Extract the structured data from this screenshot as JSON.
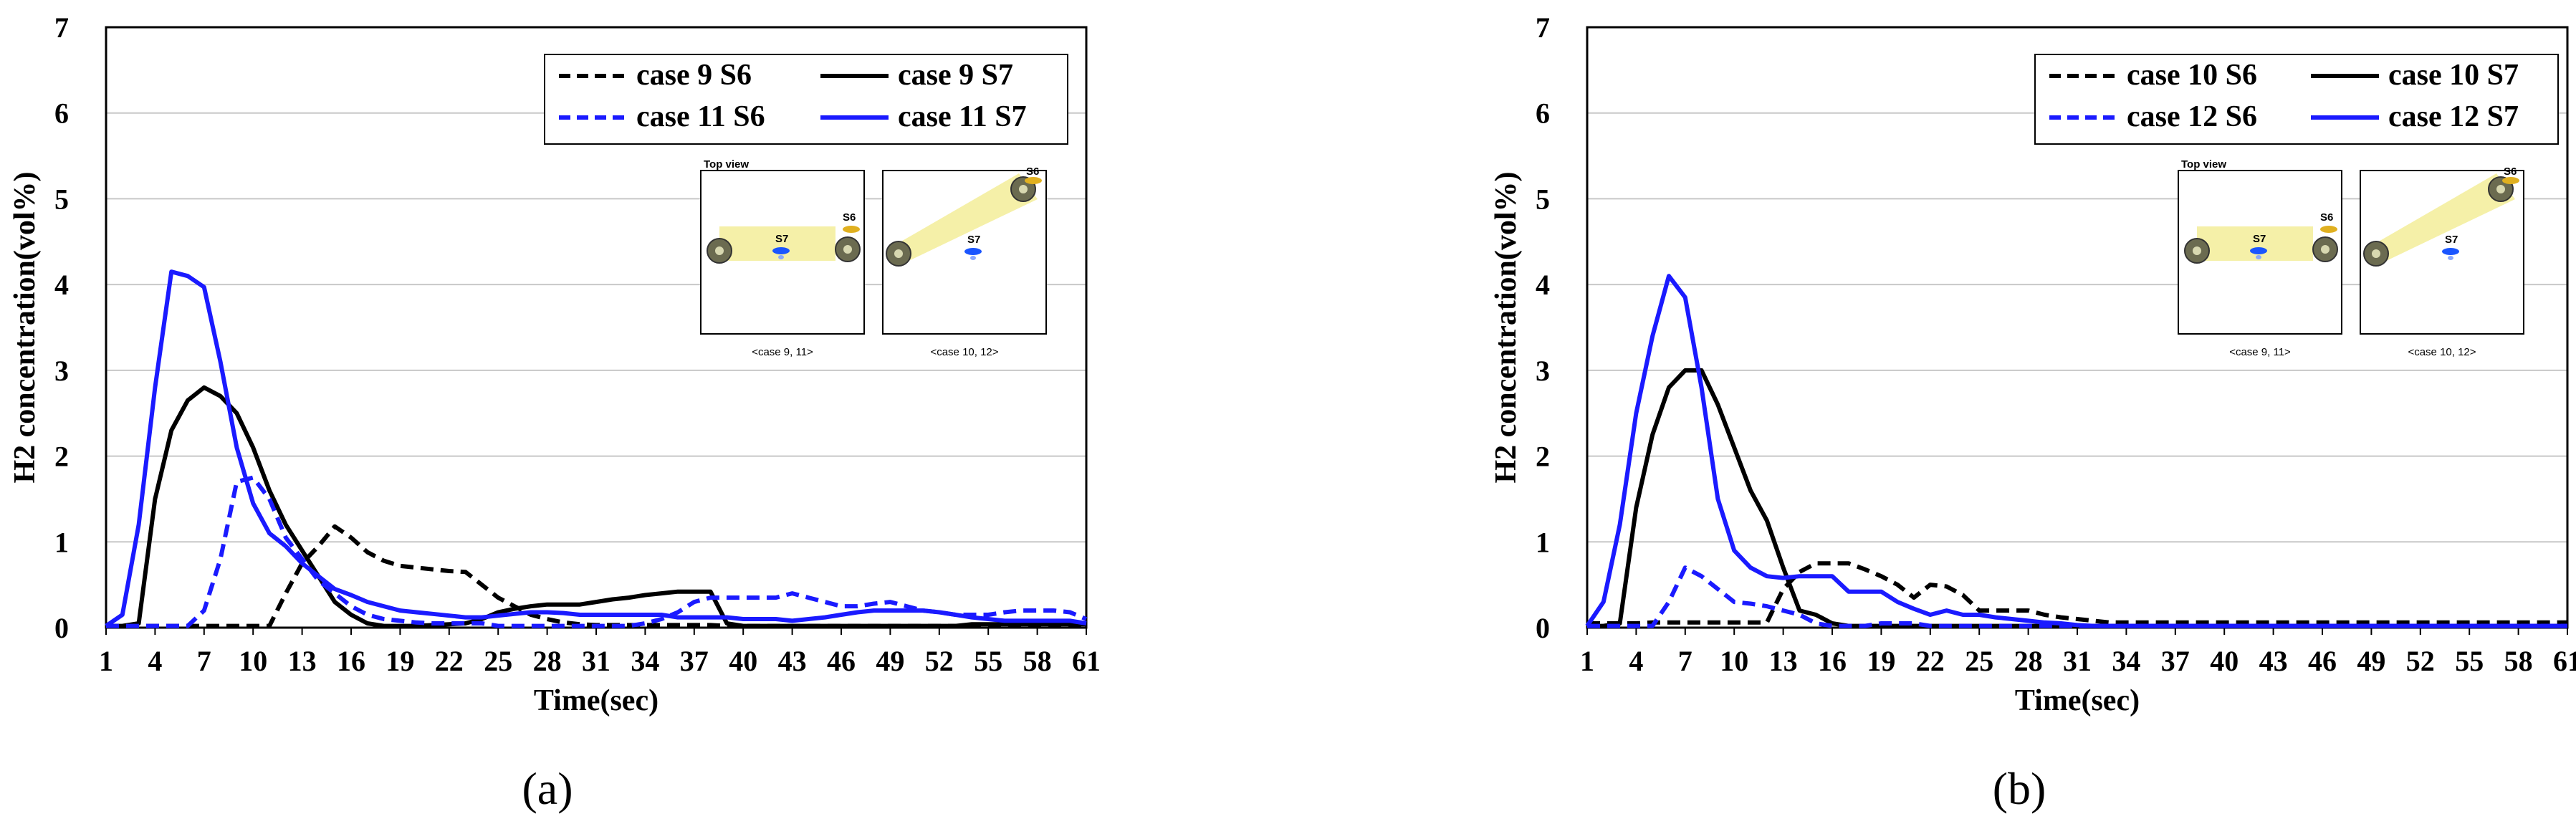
{
  "figure_labels": [
    "(a)",
    "(b)"
  ],
  "chart_data": [
    {
      "type": "line",
      "xlabel": "Time(sec)",
      "ylabel": "H2 concentration(vol%)",
      "ylim": [
        0,
        7
      ],
      "yticks": [
        0,
        1,
        2,
        3,
        4,
        5,
        6,
        7
      ],
      "xlim": [
        1,
        61
      ],
      "xticks": [
        1,
        4,
        7,
        10,
        13,
        16,
        19,
        22,
        25,
        28,
        31,
        34,
        37,
        40,
        43,
        46,
        49,
        52,
        55,
        58,
        61
      ],
      "grid": "horizontal",
      "legend_position": "top-right",
      "x": [
        1,
        2,
        3,
        4,
        5,
        6,
        7,
        8,
        9,
        10,
        11,
        12,
        13,
        14,
        15,
        16,
        17,
        18,
        19,
        20,
        21,
        22,
        23,
        24,
        25,
        26,
        27,
        28,
        29,
        30,
        31,
        32,
        33,
        34,
        35,
        36,
        37,
        38,
        39,
        40,
        41,
        42,
        43,
        44,
        45,
        46,
        47,
        48,
        49,
        50,
        51,
        52,
        53,
        54,
        55,
        56,
        57,
        58,
        59,
        60,
        61
      ],
      "series": [
        {
          "name": "case 9 S6",
          "color": "#000000",
          "dash": true,
          "values": [
            0.02,
            0.02,
            0.02,
            0.02,
            0.02,
            0.02,
            0.02,
            0.02,
            0.02,
            0.02,
            0.02,
            0.4,
            0.75,
            0.95,
            1.18,
            1.05,
            0.88,
            0.78,
            0.72,
            0.7,
            0.68,
            0.66,
            0.65,
            0.5,
            0.35,
            0.25,
            0.15,
            0.1,
            0.06,
            0.04,
            0.03,
            0.03,
            0.03,
            0.03,
            0.03,
            0.03,
            0.03,
            0.03,
            0.02,
            0.02,
            0.02,
            0.02,
            0.02,
            0.02,
            0.02,
            0.02,
            0.02,
            0.02,
            0.02,
            0.02,
            0.02,
            0.02,
            0.02,
            0.02,
            0.02,
            0.02,
            0.02,
            0.02,
            0.03,
            0.03,
            0.03
          ]
        },
        {
          "name": "case 9 S7",
          "color": "#000000",
          "dash": false,
          "values": [
            0.02,
            0.02,
            0.05,
            1.5,
            2.3,
            2.65,
            2.8,
            2.7,
            2.5,
            2.1,
            1.6,
            1.2,
            0.9,
            0.6,
            0.3,
            0.15,
            0.05,
            0.02,
            0.02,
            0.02,
            0.03,
            0.04,
            0.05,
            0.1,
            0.18,
            0.22,
            0.25,
            0.27,
            0.27,
            0.27,
            0.3,
            0.33,
            0.35,
            0.38,
            0.4,
            0.42,
            0.42,
            0.42,
            0.05,
            0.02,
            0.02,
            0.02,
            0.02,
            0.02,
            0.02,
            0.02,
            0.02,
            0.02,
            0.02,
            0.02,
            0.02,
            0.02,
            0.02,
            0.04,
            0.04,
            0.04,
            0.04,
            0.04,
            0.04,
            0.04,
            0.04
          ]
        },
        {
          "name": "case 11 S6",
          "color": "#1a1aff",
          "dash": true,
          "values": [
            0.02,
            0.02,
            0.02,
            0.02,
            0.02,
            0.02,
            0.2,
            0.8,
            1.7,
            1.75,
            1.5,
            1.05,
            0.8,
            0.55,
            0.4,
            0.25,
            0.15,
            0.1,
            0.08,
            0.06,
            0.05,
            0.05,
            0.05,
            0.05,
            0.02,
            0.02,
            0.02,
            0.02,
            0.02,
            0.02,
            0.02,
            0.02,
            0.02,
            0.05,
            0.1,
            0.18,
            0.3,
            0.35,
            0.35,
            0.35,
            0.35,
            0.35,
            0.4,
            0.35,
            0.3,
            0.25,
            0.25,
            0.28,
            0.3,
            0.25,
            0.2,
            0.18,
            0.15,
            0.15,
            0.15,
            0.18,
            0.2,
            0.2,
            0.2,
            0.18,
            0.1
          ]
        },
        {
          "name": "case 11 S7",
          "color": "#1a1aff",
          "dash": false,
          "values": [
            0.02,
            0.15,
            1.2,
            2.8,
            4.15,
            4.1,
            3.97,
            3.1,
            2.1,
            1.45,
            1.1,
            0.95,
            0.75,
            0.6,
            0.45,
            0.38,
            0.3,
            0.25,
            0.2,
            0.18,
            0.16,
            0.14,
            0.12,
            0.12,
            0.14,
            0.16,
            0.18,
            0.18,
            0.17,
            0.15,
            0.15,
            0.15,
            0.15,
            0.15,
            0.15,
            0.12,
            0.12,
            0.12,
            0.12,
            0.1,
            0.1,
            0.1,
            0.08,
            0.1,
            0.12,
            0.15,
            0.18,
            0.2,
            0.2,
            0.2,
            0.2,
            0.18,
            0.15,
            0.12,
            0.1,
            0.08,
            0.08,
            0.08,
            0.08,
            0.08,
            0.05
          ]
        }
      ]
    },
    {
      "type": "line",
      "xlabel": "Time(sec)",
      "ylabel": "H2 concentration(vol%)",
      "ylim": [
        0,
        7
      ],
      "yticks": [
        0,
        1,
        2,
        3,
        4,
        5,
        6,
        7
      ],
      "xlim": [
        1,
        61
      ],
      "xticks": [
        1,
        4,
        7,
        10,
        13,
        16,
        19,
        22,
        25,
        28,
        31,
        34,
        37,
        40,
        43,
        46,
        49,
        52,
        55,
        58,
        61
      ],
      "grid": "horizontal",
      "legend_position": "top-right",
      "x": [
        1,
        2,
        3,
        4,
        5,
        6,
        7,
        8,
        9,
        10,
        11,
        12,
        13,
        14,
        15,
        16,
        17,
        18,
        19,
        20,
        21,
        22,
        23,
        24,
        25,
        26,
        27,
        28,
        29,
        30,
        31,
        32,
        33,
        34,
        35,
        36,
        37,
        38,
        39,
        40,
        41,
        42,
        43,
        44,
        45,
        46,
        47,
        48,
        49,
        50,
        51,
        52,
        53,
        54,
        55,
        56,
        57,
        58,
        59,
        60,
        61
      ],
      "series": [
        {
          "name": "case 10 S6",
          "color": "#000000",
          "dash": true,
          "values": [
            0.05,
            0.05,
            0.05,
            0.05,
            0.06,
            0.06,
            0.06,
            0.06,
            0.06,
            0.06,
            0.06,
            0.06,
            0.45,
            0.65,
            0.75,
            0.75,
            0.75,
            0.68,
            0.6,
            0.5,
            0.35,
            0.5,
            0.48,
            0.38,
            0.2,
            0.2,
            0.2,
            0.2,
            0.15,
            0.12,
            0.1,
            0.08,
            0.06,
            0.06,
            0.06,
            0.06,
            0.06,
            0.06,
            0.06,
            0.06,
            0.06,
            0.06,
            0.06,
            0.06,
            0.06,
            0.06,
            0.06,
            0.06,
            0.06,
            0.06,
            0.06,
            0.06,
            0.06,
            0.06,
            0.06,
            0.06,
            0.06,
            0.06,
            0.06,
            0.06,
            0.06
          ]
        },
        {
          "name": "case 10 S7",
          "color": "#000000",
          "dash": false,
          "values": [
            0.02,
            0.02,
            0.05,
            1.4,
            2.25,
            2.8,
            3.0,
            3.0,
            2.6,
            2.1,
            1.6,
            1.25,
            0.7,
            0.2,
            0.15,
            0.05,
            0.02,
            0.02,
            0.02,
            0.02,
            0.02,
            0.02,
            0.02,
            0.02,
            0.02,
            0.02,
            0.02,
            0.02,
            0.02,
            0.02,
            0.02,
            0.02,
            0.02,
            0.02,
            0.02,
            0.02,
            0.02,
            0.02,
            0.02,
            0.02,
            0.02,
            0.02,
            0.02,
            0.02,
            0.02,
            0.02,
            0.02,
            0.02,
            0.02,
            0.02,
            0.02,
            0.02,
            0.02,
            0.02,
            0.02,
            0.02,
            0.02,
            0.02,
            0.02,
            0.02,
            0.02
          ]
        },
        {
          "name": "case 12 S6",
          "color": "#1a1aff",
          "dash": true,
          "values": [
            0.02,
            0.02,
            0.02,
            0.02,
            0.02,
            0.3,
            0.7,
            0.6,
            0.45,
            0.3,
            0.28,
            0.25,
            0.2,
            0.15,
            0.05,
            0.02,
            0.02,
            0.02,
            0.05,
            0.05,
            0.05,
            0.02,
            0.02,
            0.02,
            0.02,
            0.02,
            0.02,
            0.02,
            0.02,
            0.02,
            0.02,
            0.02,
            0.02,
            0.02,
            0.02,
            0.02,
            0.02,
            0.02,
            0.02,
            0.02,
            0.02,
            0.02,
            0.02,
            0.02,
            0.02,
            0.02,
            0.02,
            0.02,
            0.02,
            0.02,
            0.02,
            0.02,
            0.02,
            0.02,
            0.02,
            0.02,
            0.02,
            0.02,
            0.02,
            0.02,
            0.02
          ]
        },
        {
          "name": "case 12 S7",
          "color": "#1a1aff",
          "dash": false,
          "values": [
            0.02,
            0.3,
            1.2,
            2.5,
            3.4,
            4.1,
            3.85,
            2.8,
            1.5,
            0.9,
            0.7,
            0.6,
            0.58,
            0.6,
            0.6,
            0.6,
            0.42,
            0.42,
            0.42,
            0.3,
            0.22,
            0.15,
            0.2,
            0.15,
            0.15,
            0.12,
            0.1,
            0.08,
            0.06,
            0.05,
            0.03,
            0.02,
            0.02,
            0.02,
            0.02,
            0.02,
            0.02,
            0.02,
            0.02,
            0.02,
            0.02,
            0.02,
            0.02,
            0.02,
            0.02,
            0.02,
            0.02,
            0.02,
            0.02,
            0.02,
            0.02,
            0.02,
            0.02,
            0.02,
            0.02,
            0.02,
            0.02,
            0.02,
            0.02,
            0.02,
            0.02
          ]
        }
      ]
    }
  ],
  "inset": {
    "title": "Top view",
    "sensor_top": "S6",
    "sensor_center": "S7",
    "caption_left": "<case 9, 11>",
    "caption_right": "<case 10, 12>"
  }
}
